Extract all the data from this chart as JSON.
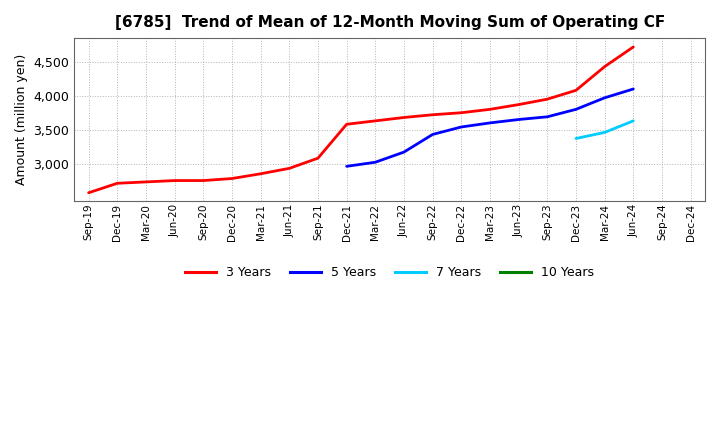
{
  "title": "[6785]  Trend of Mean of 12-Month Moving Sum of Operating CF",
  "ylabel": "Amount (million yen)",
  "x_labels": [
    "Sep-19",
    "Dec-19",
    "Mar-20",
    "Jun-20",
    "Sep-20",
    "Dec-20",
    "Mar-21",
    "Jun-21",
    "Sep-21",
    "Dec-21",
    "Mar-22",
    "Jun-22",
    "Sep-22",
    "Dec-22",
    "Mar-23",
    "Jun-23",
    "Sep-23",
    "Dec-23",
    "Mar-24",
    "Jun-24",
    "Sep-24",
    "Dec-24"
  ],
  "y3": [
    2570,
    2710,
    2730,
    2750,
    2750,
    2780,
    2850,
    2930,
    3080,
    3580,
    3630,
    3680,
    3720,
    3750,
    3800,
    3870,
    3950,
    4080,
    4430,
    4720,
    null,
    null
  ],
  "y5": [
    null,
    null,
    null,
    null,
    null,
    null,
    null,
    null,
    null,
    2960,
    3020,
    3170,
    3430,
    3540,
    3600,
    3650,
    3690,
    3800,
    3970,
    4100,
    null,
    null
  ],
  "y7": [
    null,
    null,
    null,
    null,
    null,
    null,
    null,
    null,
    null,
    null,
    null,
    null,
    null,
    null,
    null,
    null,
    null,
    3370,
    3460,
    3630,
    null,
    null
  ],
  "y10": [
    null,
    null,
    null,
    null,
    null,
    null,
    null,
    null,
    null,
    null,
    null,
    null,
    null,
    null,
    null,
    null,
    null,
    null,
    null,
    null,
    null,
    null
  ],
  "color_3y": "#ff0000",
  "color_5y": "#0000ff",
  "color_7y": "#00ccff",
  "color_10y": "#008000",
  "label_3y": "3 Years",
  "label_5y": "5 Years",
  "label_7y": "7 Years",
  "label_10y": "10 Years",
  "ylim": [
    2450,
    4850
  ],
  "yticks": [
    3000,
    3500,
    4000,
    4500
  ],
  "background_color": "#ffffff",
  "title_fontsize": 11,
  "lw": 2.0
}
